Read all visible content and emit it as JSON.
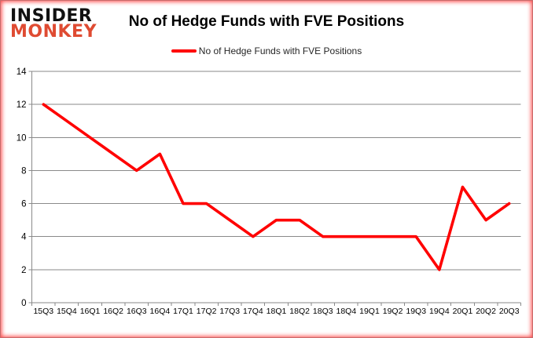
{
  "header": {
    "logo_line1": "INSIDER",
    "logo_line2": "MONKEY",
    "title": "No of Hedge Funds with FVE Positions"
  },
  "legend": {
    "label": "No of Hedge Funds with FVE Positions"
  },
  "colors": {
    "line": "#ff0000",
    "logo_black": "#111111",
    "logo_red": "#df4b32",
    "gridline": "#8a8a8a",
    "axis": "#8a8a8a",
    "tick_label": "#000000",
    "border_glow": "#ff0000",
    "background": "#ffffff"
  },
  "chart_data": {
    "type": "line",
    "title": "No of Hedge Funds with FVE Positions",
    "categories": [
      "15Q3",
      "15Q4",
      "16Q1",
      "16Q2",
      "16Q3",
      "16Q4",
      "17Q1",
      "17Q2",
      "17Q3",
      "17Q4",
      "18Q1",
      "18Q2",
      "18Q3",
      "18Q4",
      "19Q1",
      "19Q2",
      "19Q3",
      "19Q4",
      "20Q1",
      "20Q2",
      "20Q3"
    ],
    "series": [
      {
        "name": "No of Hedge Funds with FVE Positions",
        "values": [
          12,
          11,
          10,
          9,
          8,
          9,
          6,
          6,
          5,
          4,
          5,
          5,
          4,
          4,
          4,
          4,
          4,
          2,
          7,
          5,
          6
        ]
      }
    ],
    "xlabel": "",
    "ylabel": "",
    "ylim": [
      0,
      14
    ],
    "ytick_interval": 2,
    "grid": true,
    "legend_position": "top"
  }
}
